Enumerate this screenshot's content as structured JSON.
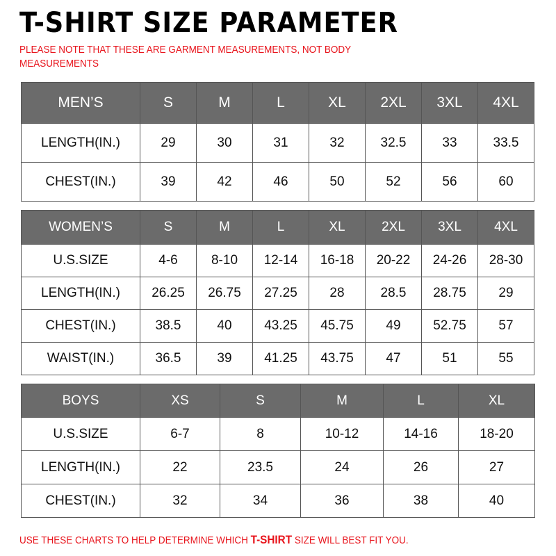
{
  "title": "T-SHIRT SIZE PARAMETER",
  "note": "PLEASE NOTE THAT THESE ARE GARMENT MEASUREMENTS, NOT BODY MEASUREMENTS",
  "footer": {
    "before": "USE THESE CHARTS TO HELP DETERMINE WHICH ",
    "highlight": "T-SHIRT",
    "after": " SIZE WILL BEST FIT YOU."
  },
  "colors": {
    "header_bg": "#6b6b6b",
    "note_red": "#e8131b"
  },
  "men": {
    "header": [
      "MEN’S",
      "S",
      "M",
      "L",
      "XL",
      "2XL",
      "3XL",
      "4XL"
    ],
    "rows": [
      [
        "LENGTH(IN.)",
        "29",
        "30",
        "31",
        "32",
        "32.5",
        "33",
        "33.5"
      ],
      [
        "CHEST(IN.)",
        "39",
        "42",
        "46",
        "50",
        "52",
        "56",
        "60"
      ]
    ]
  },
  "women": {
    "header": [
      "WOMEN’S",
      "S",
      "M",
      "L",
      "XL",
      "2XL",
      "3XL",
      "4XL"
    ],
    "rows": [
      [
        "U.S.SIZE",
        "4-6",
        "8-10",
        "12-14",
        "16-18",
        "20-22",
        "24-26",
        "28-30"
      ],
      [
        "LENGTH(IN.)",
        "26.25",
        "26.75",
        "27.25",
        "28",
        "28.5",
        "28.75",
        "29"
      ],
      [
        "CHEST(IN.)",
        "38.5",
        "40",
        "43.25",
        "45.75",
        "49",
        "52.75",
        "57"
      ],
      [
        "WAIST(IN.)",
        "36.5",
        "39",
        "41.25",
        "43.75",
        "47",
        "51",
        "55"
      ]
    ]
  },
  "boys": {
    "header": [
      "BOYS",
      "XS",
      "S",
      "M",
      "L",
      "XL"
    ],
    "rows": [
      [
        "U.S.SIZE",
        "6-7",
        "8",
        "10-12",
        "14-16",
        "18-20"
      ],
      [
        "LENGTH(IN.)",
        "22",
        "23.5",
        "24",
        "26",
        "27"
      ],
      [
        "CHEST(IN.)",
        "32",
        "34",
        "36",
        "38",
        "40"
      ]
    ]
  }
}
